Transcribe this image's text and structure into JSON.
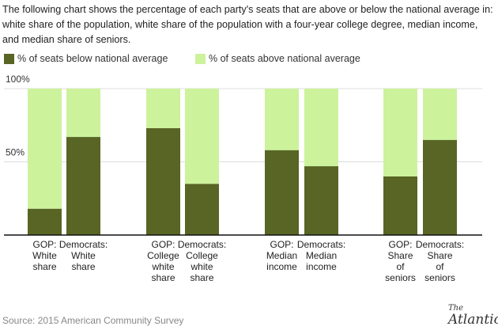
{
  "intro": "The following chart shows the percentage of each party's seats that are above or below the national average in: white share of the population, white share of the population with a four-year college degree, median income, and median share of seniors.",
  "source": "Source: 2015 American Community Survey",
  "logo": "The Atlantic",
  "chart_data": {
    "type": "bar",
    "stacked": true,
    "categories": [
      [
        "GOP:",
        "White",
        "share"
      ],
      [
        "Democrats:",
        "White",
        "share"
      ],
      [
        "GOP:",
        "College",
        "white",
        "share"
      ],
      [
        "Democrats:",
        "College",
        "white",
        "share"
      ],
      [
        "GOP:",
        "Median",
        "income"
      ],
      [
        "Democrats:",
        "Median",
        "income"
      ],
      [
        "GOP:",
        "Share",
        "of",
        "seniors"
      ],
      [
        "Democrats:",
        "Share",
        "of",
        "seniors"
      ]
    ],
    "series": [
      {
        "name": "% of seats below national average",
        "color": "#586524",
        "values": [
          18,
          67,
          73,
          35,
          58,
          47,
          40,
          65
        ]
      },
      {
        "name": "% of seats above national average",
        "color": "#cdf29c",
        "values": [
          82,
          33,
          27,
          65,
          42,
          53,
          60,
          35
        ]
      }
    ],
    "ylim": [
      0,
      100
    ],
    "yticks": [
      "50%",
      "100%"
    ],
    "grid": true,
    "legend": "top-left"
  }
}
